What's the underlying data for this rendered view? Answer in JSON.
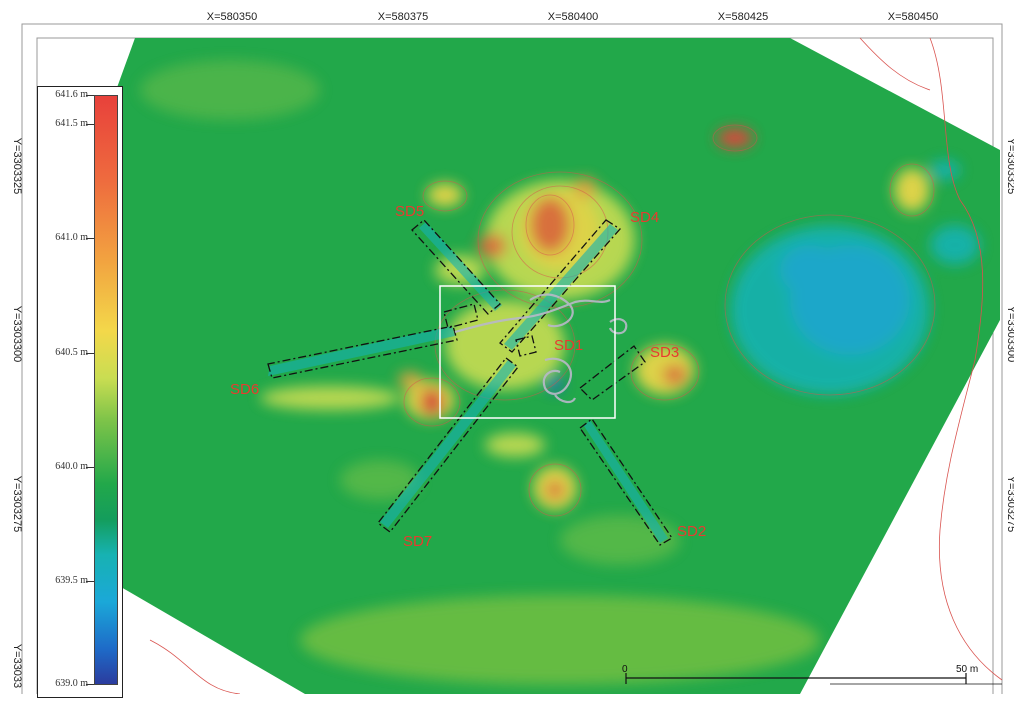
{
  "x_axis_labels": [
    "X=580350",
    "X=580375",
    "X=580400",
    "X=580425",
    "X=580450"
  ],
  "y_axis_labels_left": [
    "Y=3303325",
    "Y=3303300",
    "Y=3303275",
    "Y=33033"
  ],
  "y_axis_labels_right": [
    "Y=3303325",
    "Y=3303300",
    "Y=3303275"
  ],
  "legend": {
    "labels": [
      "641.6 m",
      "641.5 m",
      "641.0 m",
      "640.5 m",
      "640.0 m",
      "639.5 m",
      "639.0 m"
    ],
    "ramp_colors": [
      "#e8413b",
      "#f2a340",
      "#f3d84a",
      "#7fc449",
      "#22a84a",
      "#1ba8d8",
      "#2b3c9e"
    ]
  },
  "site_labels": [
    "SD1",
    "SD2",
    "SD3",
    "SD4",
    "SD5",
    "SD6",
    "SD7"
  ],
  "scale_bar": {
    "start": "0",
    "end": "50 m"
  },
  "colors": {
    "terrain_green": "#1fa84a",
    "contour": "#d9534f",
    "trench_outline": "#111111"
  }
}
